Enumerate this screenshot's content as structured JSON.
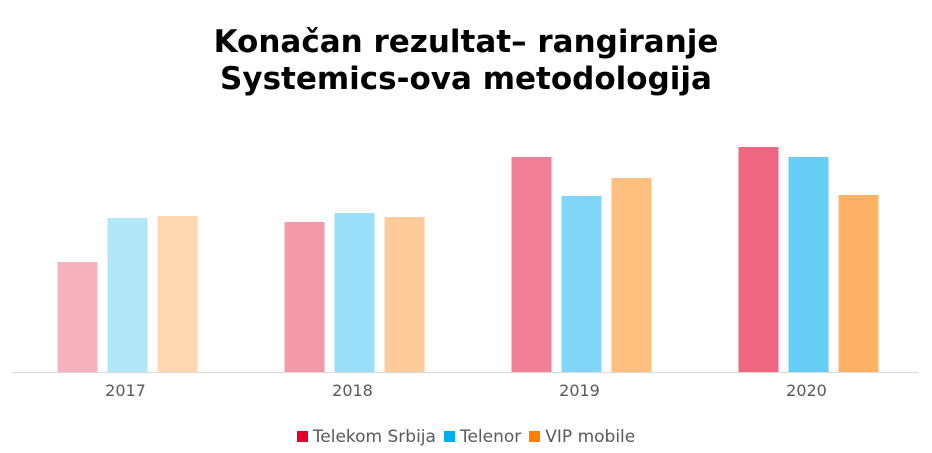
{
  "chart_data": {
    "type": "bar",
    "title": "Konačan rezultat– rangiranje\nSystemics-ova metodologija",
    "title_lines": [
      "Konačan rezultat– rangiranje",
      "Systemics-ova metodologija"
    ],
    "categories": [
      "2017",
      "2018",
      "2019",
      "2020"
    ],
    "series": [
      {
        "name": "Telekom Srbija",
        "color": "#e4002b",
        "values": [
          110,
          150,
          215,
          225
        ]
      },
      {
        "name": "Telenor",
        "color": "#00aeef",
        "values": [
          154,
          159,
          176,
          215
        ]
      },
      {
        "name": "VIP mobile",
        "color": "#ff7f00",
        "values": [
          156,
          155,
          194,
          177
        ]
      }
    ],
    "category_opacity": [
      0.3,
      0.4,
      0.5,
      0.6
    ],
    "ylim": [
      0,
      250
    ],
    "y_axis_shown": false,
    "grid": false,
    "legend": "bottom"
  }
}
